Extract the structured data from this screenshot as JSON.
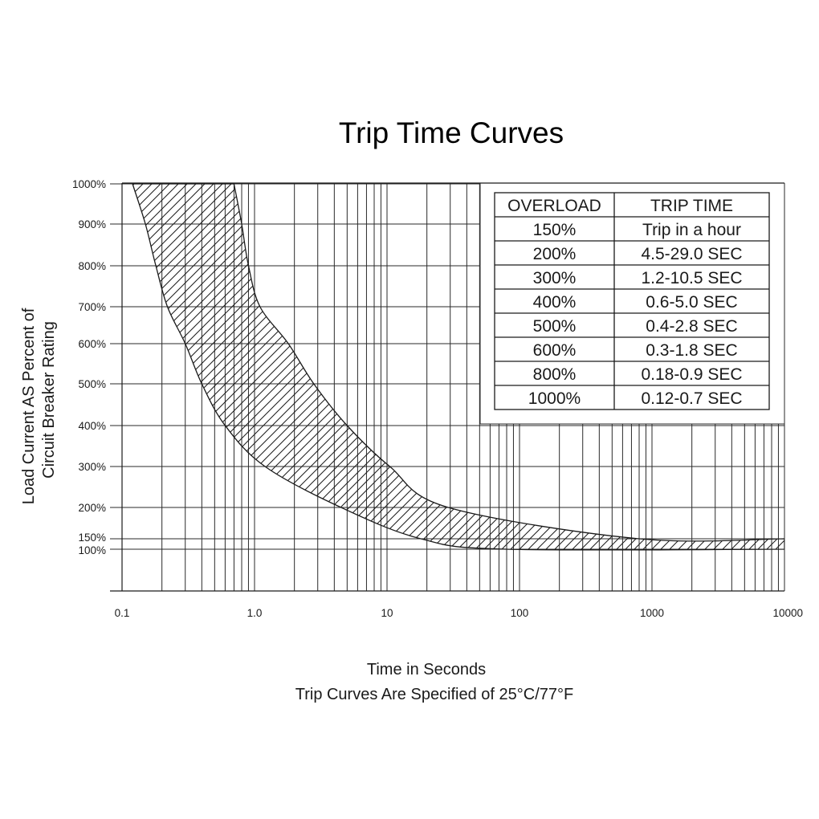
{
  "chart_data": {
    "type": "area",
    "title": "Trip Time Curves",
    "xlabel": "Time in Seconds",
    "xlabel_note": "Trip Curves Are Specified of 25°C/77°F",
    "ylabel_lines": [
      "Load Current AS Percent of",
      "Circuit Breaker Rating"
    ],
    "x_scale": "log",
    "xlim": [
      0.1,
      10000
    ],
    "x_ticks": [
      {
        "value": 0.1,
        "label": "0.1"
      },
      {
        "value": 1,
        "label": "1.0"
      },
      {
        "value": 10,
        "label": "10"
      },
      {
        "value": 100,
        "label": "100"
      },
      {
        "value": 1000,
        "label": "1000"
      },
      {
        "value": 10000,
        "label": "10000"
      }
    ],
    "y_ticks": [
      {
        "value": 1000,
        "label": "1000%"
      },
      {
        "value": 900,
        "label": "900%"
      },
      {
        "value": 800,
        "label": "800%"
      },
      {
        "value": 700,
        "label": "700%"
      },
      {
        "value": 600,
        "label": "600%"
      },
      {
        "value": 500,
        "label": "500%"
      },
      {
        "value": 400,
        "label": "400%"
      },
      {
        "value": 300,
        "label": "300%"
      },
      {
        "value": 200,
        "label": "200%"
      },
      {
        "value": 150,
        "label": "150%"
      },
      {
        "value": 100,
        "label": "100%"
      }
    ],
    "grid": true,
    "band": {
      "fill": "hatched",
      "min_curve": [
        {
          "current": 1000,
          "time": 0.12
        },
        {
          "current": 900,
          "time": 0.15
        },
        {
          "current": 800,
          "time": 0.18
        },
        {
          "current": 700,
          "time": 0.22
        },
        {
          "current": 600,
          "time": 0.3
        },
        {
          "current": 500,
          "time": 0.4
        },
        {
          "current": 400,
          "time": 0.6
        },
        {
          "current": 300,
          "time": 1.2
        },
        {
          "current": 200,
          "time": 4.5
        },
        {
          "current": 150,
          "time": 18
        },
        {
          "current": 100,
          "time": 80
        },
        {
          "current": 100,
          "time": 10000
        }
      ],
      "max_curve": [
        {
          "current": 1000,
          "time": 0.7
        },
        {
          "current": 900,
          "time": 0.8
        },
        {
          "current": 800,
          "time": 0.9
        },
        {
          "current": 700,
          "time": 1.1
        },
        {
          "current": 600,
          "time": 1.8
        },
        {
          "current": 500,
          "time": 2.8
        },
        {
          "current": 400,
          "time": 5
        },
        {
          "current": 300,
          "time": 10.5
        },
        {
          "current": 200,
          "time": 29
        },
        {
          "current": 150,
          "time": 800
        },
        {
          "current": 150,
          "time": 10000
        }
      ]
    },
    "table": {
      "headers": [
        "OVERLOAD",
        "TRIP TIME"
      ],
      "rows": [
        [
          "150%",
          "Trip in a hour"
        ],
        [
          "200%",
          "4.5-29.0 SEC"
        ],
        [
          "300%",
          "1.2-10.5 SEC"
        ],
        [
          "400%",
          "0.6-5.0 SEC"
        ],
        [
          "500%",
          "0.4-2.8 SEC"
        ],
        [
          "600%",
          "0.3-1.8 SEC"
        ],
        [
          "800%",
          "0.18-0.9 SEC"
        ],
        [
          "1000%",
          "0.12-0.7 SEC"
        ]
      ]
    },
    "colors": {
      "ink": "#1a1a1a",
      "grid": "#2a2a2a",
      "background": "#ffffff"
    }
  }
}
